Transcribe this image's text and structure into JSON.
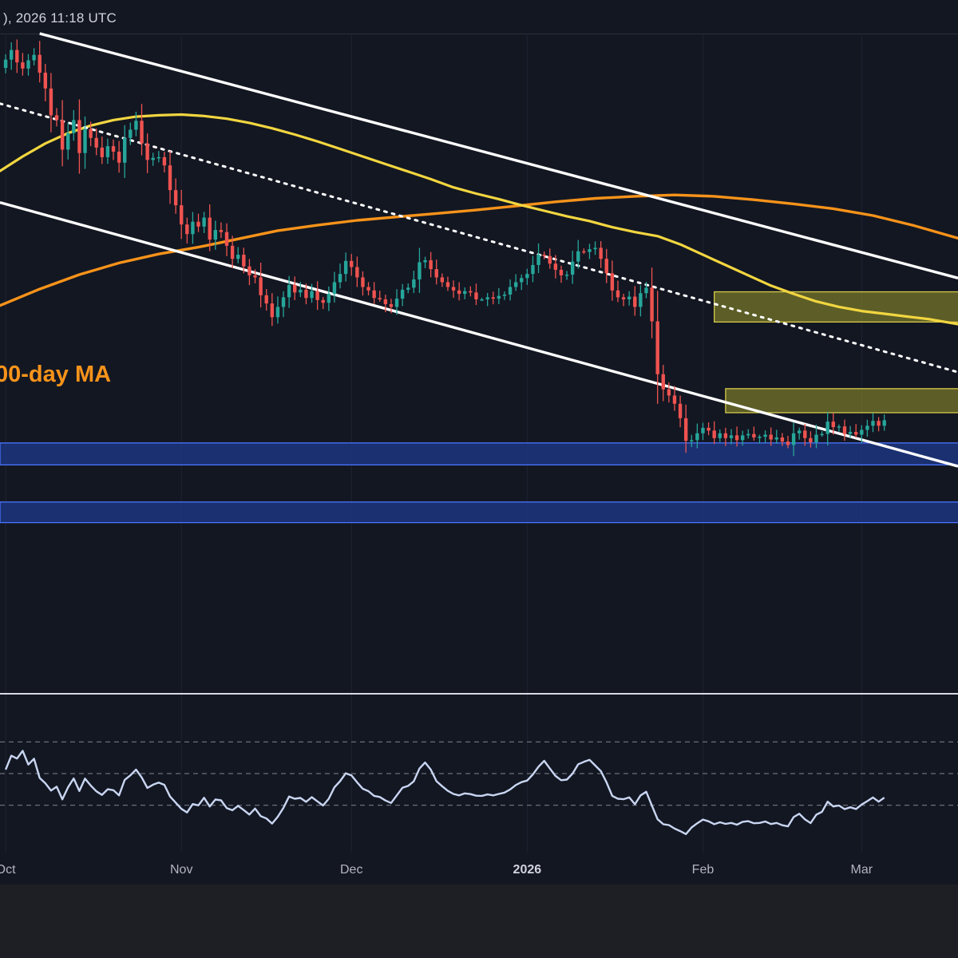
{
  "header": {
    "timestamp": "), 2026 11:18 UTC"
  },
  "annotations": {
    "ma_label": "00-day MA",
    "ma_color": "#f7931a",
    "short_ma_color": "#f2d640"
  },
  "colors": {
    "background": "#131722",
    "bull": "#26a69a",
    "bear": "#ef5350",
    "channel": "#ffffff",
    "supply_zone": "#8a8a2a",
    "demand_zone": "#1f3a8f",
    "rsi_line": "#c9d6f2"
  },
  "chart_data": {
    "type": "line",
    "title": "",
    "xlabel": "",
    "ylabel": "",
    "x_ticks": [
      "Oct",
      "Nov",
      "Dec",
      "2026",
      "Feb",
      "Mar"
    ],
    "x_tick_days": [
      0,
      31,
      61,
      92,
      123,
      151
    ],
    "x_range_days": [
      -1,
      168
    ],
    "price_range": [
      4.0,
      100.0
    ],
    "series": [
      {
        "name": "",
        "kind": "price_close",
        "values": [
          96.2,
          97.6,
          95.8,
          94.9,
          96.1,
          96.9,
          94.3,
          92.0,
          88.1,
          87.4,
          83.1,
          85.5,
          87.4,
          82.6,
          86.1,
          84.8,
          83.4,
          82.0,
          83.6,
          82.8,
          81.2,
          84.8,
          86.0,
          87.3,
          84.0,
          81.6,
          81.9,
          82.0,
          80.8,
          77.2,
          75.0,
          72.2,
          70.8,
          72.6,
          71.9,
          73.2,
          70.0,
          71.4,
          71.1,
          69.1,
          67.2,
          67.8,
          66.1,
          64.8,
          64.5,
          61.9,
          60.7,
          58.7,
          60.2,
          61.6,
          63.4,
          62.3,
          62.7,
          61.5,
          62.5,
          61.2,
          60.8,
          62.1,
          63.8,
          65.0,
          66.9,
          66.0,
          64.5,
          63.1,
          62.6,
          61.5,
          61.3,
          60.6,
          60.2,
          61.4,
          62.7,
          63.0,
          64.2,
          66.7,
          67.0,
          65.7,
          64.5,
          63.8,
          63.1,
          62.6,
          62.1,
          62.5,
          62.3,
          61.3,
          61.3,
          61.6,
          61.4,
          61.8,
          62.0,
          63.1,
          63.8,
          64.4,
          65.0,
          66.3,
          67.8,
          67.6,
          66.5,
          65.6,
          64.8,
          64.9,
          66.8,
          68.3,
          68.2,
          68.6,
          68.8,
          67.2,
          65.1,
          62.6,
          61.6,
          61.3,
          61.7,
          60.2,
          62.2,
          63.0,
          58.1,
          50.4,
          48.2,
          47.3,
          46.1,
          44.0,
          40.7,
          40.8,
          41.8,
          42.6,
          42.2,
          41.1,
          41.8,
          41.1,
          41.5,
          40.8,
          41.5,
          41.7,
          41.2,
          41.3,
          41.6,
          40.9,
          41.2,
          40.6,
          40.1,
          41.8,
          42.2,
          41.1,
          40.5,
          41.6,
          41.7,
          43.5,
          42.7,
          42.8,
          41.7,
          42.0,
          41.6,
          42.3,
          42.9,
          43.6,
          42.9,
          43.7
        ]
      },
      {
        "name": "",
        "kind": "rsi",
        "values": [
          52.5,
          61.3,
          59.5,
          64.4,
          55.7,
          59.4,
          47.2,
          43.9,
          39.3,
          41.7,
          33.7,
          41.3,
          46.9,
          39.0,
          46.8,
          42.5,
          38.8,
          36.5,
          40.1,
          39.5,
          36.2,
          46.0,
          48.9,
          52.5,
          47.6,
          40.9,
          43.0,
          44.3,
          42.9,
          35.5,
          31.6,
          27.7,
          25.4,
          30.7,
          29.9,
          34.7,
          29.2,
          33.6,
          33.1,
          28.2,
          26.8,
          29.6,
          26.9,
          24.1,
          27.9,
          23.1,
          21.6,
          18.4,
          22.7,
          28.3,
          35.5,
          34.1,
          34.6,
          32.1,
          35.1,
          32.4,
          29.8,
          34.1,
          41.3,
          45.2,
          50.2,
          48.9,
          44.5,
          40.4,
          38.9,
          35.9,
          35.2,
          33.0,
          31.4,
          36.2,
          41.0,
          42.2,
          45.1,
          53.2,
          57.0,
          52.5,
          45.2,
          42.0,
          39.1,
          37.1,
          36.2,
          37.5,
          37.0,
          36.0,
          35.9,
          36.8,
          36.2,
          37.1,
          38.0,
          40.0,
          42.8,
          44.6,
          45.6,
          49.5,
          54.4,
          58.1,
          53.2,
          48.5,
          45.8,
          46.2,
          50.0,
          55.9,
          57.4,
          58.7,
          55.1,
          51.5,
          44.4,
          35.9,
          34.1,
          33.8,
          35.0,
          30.6,
          36.2,
          38.5,
          29.7,
          21.1,
          18.0,
          17.4,
          15.2,
          13.6,
          11.7,
          15.9,
          18.6,
          20.9,
          19.8,
          18.0,
          19.2,
          18.2,
          18.8,
          17.7,
          19.5,
          19.9,
          18.6,
          18.8,
          19.7,
          18.1,
          18.8,
          17.3,
          16.6,
          22.5,
          24.6,
          21.0,
          18.7,
          24.0,
          25.8,
          32.2,
          29.2,
          29.8,
          27.5,
          28.7,
          27.6,
          30.4,
          32.6,
          34.9,
          32.2,
          34.8
        ]
      },
      {
        "name": "",
        "kind": "ma_short",
        "x": [
          -1,
          3,
          7,
          11,
          15,
          19,
          23,
          27,
          31,
          35,
          39,
          43,
          47,
          51,
          55,
          59,
          63,
          67,
          71,
          75,
          79,
          83,
          87,
          91,
          95,
          99,
          103,
          107,
          111,
          115,
          119,
          123,
          127,
          131,
          135,
          139,
          143,
          147,
          151,
          155,
          159,
          163,
          168
        ],
        "values": [
          80.0,
          82.1,
          84.0,
          85.5,
          86.6,
          87.4,
          87.9,
          88.1,
          88.2,
          88.0,
          87.6,
          87.0,
          86.2,
          85.3,
          84.3,
          83.2,
          82.1,
          81.0,
          79.9,
          78.8,
          77.6,
          76.7,
          75.9,
          75.0,
          74.2,
          73.4,
          72.7,
          71.8,
          71.1,
          70.5,
          69.3,
          67.8,
          66.3,
          64.8,
          63.3,
          62.1,
          61.0,
          60.2,
          59.6,
          59.2,
          58.8,
          58.4,
          57.7
        ]
      },
      {
        "name": "",
        "kind": "ma_long",
        "x": [
          -1,
          6,
          13,
          20,
          27,
          34,
          41,
          48,
          55,
          62,
          69,
          76,
          83,
          90,
          97,
          104,
          111,
          118,
          125,
          132,
          139,
          146,
          153,
          160,
          168
        ],
        "values": [
          60.4,
          62.8,
          64.9,
          66.6,
          67.9,
          68.9,
          70.1,
          71.3,
          72.1,
          72.8,
          73.3,
          73.8,
          74.3,
          74.9,
          75.5,
          76.0,
          76.3,
          76.5,
          76.3,
          75.8,
          75.2,
          74.5,
          73.5,
          72.1,
          70.2
        ]
      }
    ],
    "channel": {
      "upper": [
        [
          6,
          100.0
        ],
        [
          168,
          64.4
        ]
      ],
      "lower": [
        [
          -1,
          75.4
        ],
        [
          168,
          37.0
        ]
      ],
      "mid": [
        [
          -1,
          89.8
        ],
        [
          168,
          50.7
        ]
      ]
    },
    "zones": [
      {
        "kind": "supply",
        "x_start": 125,
        "top": 62.4,
        "bottom": 58.0
      },
      {
        "kind": "supply",
        "x_start": 127,
        "top": 48.3,
        "bottom": 44.8
      },
      {
        "kind": "demand",
        "x_start": -1,
        "top": 40.4,
        "bottom": 37.2
      },
      {
        "kind": "demand",
        "x_start": -1,
        "top": 31.8,
        "bottom": 28.8
      }
    ],
    "rsi_range": [
      0,
      100
    ],
    "rsi_guides": [
      70,
      50,
      30
    ]
  }
}
